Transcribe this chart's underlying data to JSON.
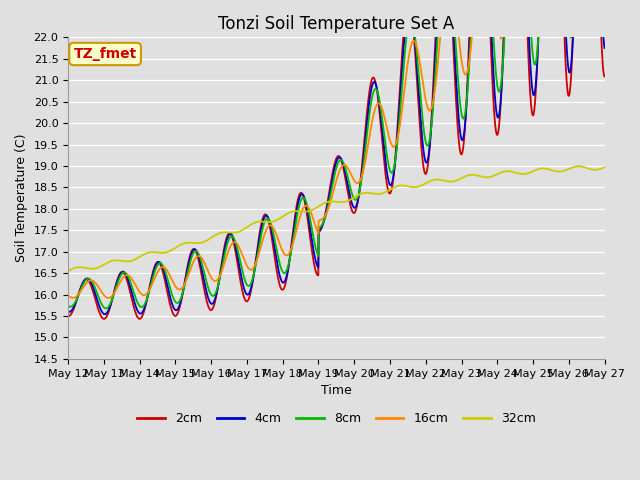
{
  "title": "Tonzi Soil Temperature Set A",
  "xlabel": "Time",
  "ylabel": "Soil Temperature (C)",
  "annotation": "TZ_fmet",
  "ylim": [
    14.5,
    22.0
  ],
  "yticks": [
    14.5,
    15.0,
    15.5,
    16.0,
    16.5,
    17.0,
    17.5,
    18.0,
    18.5,
    19.0,
    19.5,
    20.0,
    20.5,
    21.0,
    21.5,
    22.0
  ],
  "xtick_labels": [
    "May 12",
    "May 13",
    "May 14",
    "May 15",
    "May 16",
    "May 17",
    "May 18",
    "May 19",
    "May 20",
    "May 21",
    "May 22",
    "May 23",
    "May 24",
    "May 25",
    "May 26",
    "May 27"
  ],
  "series_colors": [
    "#cc0000",
    "#0000cc",
    "#00bb00",
    "#ff8800",
    "#cccc00"
  ],
  "series_labels": [
    "2cm",
    "4cm",
    "8cm",
    "16cm",
    "32cm"
  ],
  "background_color": "#e0e0e0",
  "grid_color": "#ffffff",
  "annotation_bg": "#ffffcc",
  "annotation_border": "#cc9900",
  "title_fontsize": 12,
  "axis_label_fontsize": 9,
  "tick_fontsize": 8,
  "legend_fontsize": 9
}
